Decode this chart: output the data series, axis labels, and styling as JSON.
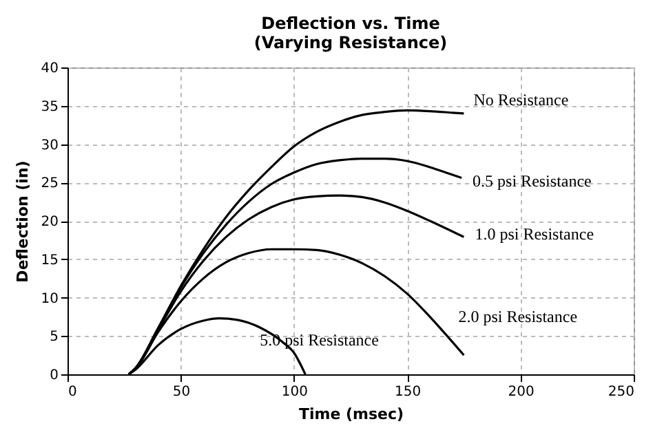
{
  "chart_data": {
    "type": "line",
    "title": "Deflection vs. Time",
    "subtitle": "(Varying Resistance)",
    "xlabel": "Time (msec)",
    "ylabel": "Deflection (in)",
    "xlim": [
      0,
      250
    ],
    "xticks": [
      0,
      50,
      100,
      150,
      200,
      250
    ],
    "ylim": [
      0,
      40
    ],
    "yticks": [
      0,
      5,
      10,
      15,
      20,
      25,
      30,
      35,
      40
    ],
    "grid": true,
    "legend": false,
    "line_style": "solid",
    "series": [
      {
        "name": "No Resistance",
        "color": "#000000",
        "x": [
          27,
          30,
          40,
          50,
          60,
          70,
          80,
          90,
          100,
          110,
          120,
          130,
          140,
          150,
          160,
          170,
          175
        ],
        "values": [
          0,
          0.8,
          6,
          11.5,
          16.3,
          20.5,
          24,
          27,
          29.7,
          31.6,
          32.9,
          33.8,
          34.2,
          34.4,
          34.3,
          34.1,
          34
        ]
      },
      {
        "name": "0.5 psi Resistance",
        "color": "#000000",
        "x": [
          27,
          30,
          40,
          50,
          60,
          70,
          80,
          90,
          100,
          110,
          120,
          130,
          140,
          150,
          160,
          170,
          174
        ],
        "values": [
          0,
          0.8,
          6,
          11.3,
          15.8,
          19.5,
          22.5,
          24.8,
          26.3,
          27.4,
          27.9,
          28.1,
          28.1,
          27.8,
          27,
          26,
          25.6
        ]
      },
      {
        "name": "1.0 psi Resistance",
        "color": "#000000",
        "x": [
          27,
          30,
          40,
          50,
          60,
          70,
          80,
          90,
          100,
          110,
          120,
          130,
          140,
          150,
          160,
          175
        ],
        "values": [
          0,
          0.8,
          5.8,
          10.8,
          14.8,
          17.9,
          20.2,
          21.8,
          22.8,
          23.2,
          23.3,
          23.1,
          22.4,
          21.3,
          20,
          17.9
        ]
      },
      {
        "name": "2.0 psi Resistance",
        "color": "#000000",
        "x": [
          27,
          30,
          40,
          50,
          60,
          70,
          80,
          90,
          100,
          110,
          120,
          130,
          140,
          150,
          160,
          170,
          175
        ],
        "values": [
          0,
          0.7,
          5.5,
          9.5,
          12.5,
          14.6,
          15.8,
          16.3,
          16.3,
          16.2,
          15.6,
          14.5,
          12.8,
          10.5,
          7.5,
          4.2,
          2.5
        ]
      },
      {
        "name": "5.0 psi Resistance",
        "color": "#000000",
        "x": [
          27,
          30,
          40,
          50,
          60,
          67,
          75,
          85,
          95,
          100,
          105
        ],
        "values": [
          0,
          0.6,
          3.8,
          5.9,
          7,
          7.3,
          7.1,
          6.1,
          4.2,
          2.8,
          0
        ]
      }
    ]
  }
}
